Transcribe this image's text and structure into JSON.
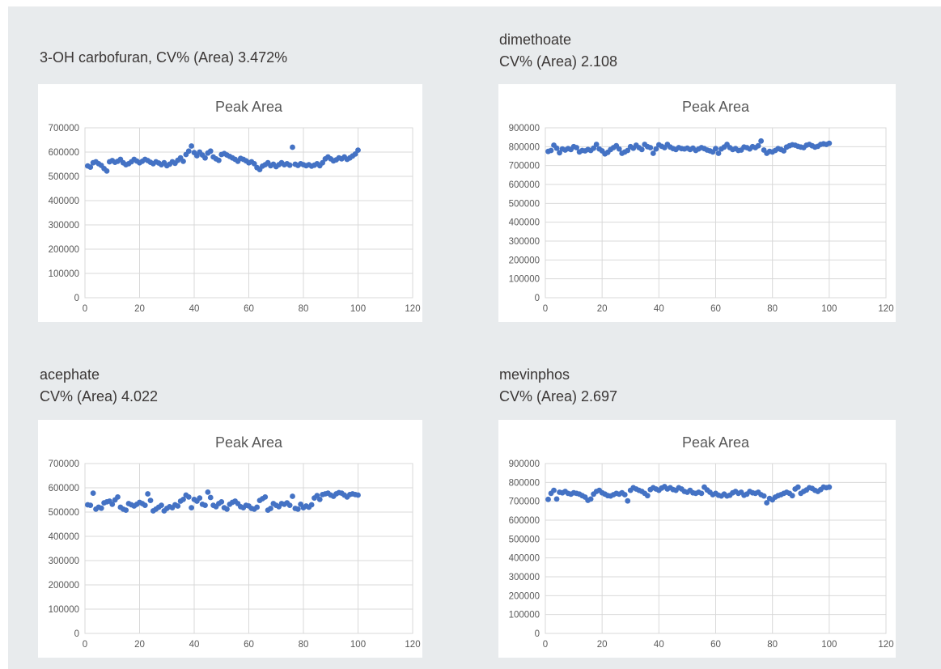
{
  "colors": {
    "panel_bg": "#e8ebed",
    "card_bg": "#ffffff",
    "heading_text": "#3b3736",
    "chart_text": "#595959",
    "gridline": "#d9d9d9",
    "marker": "#4472C4"
  },
  "panels": [
    {
      "heading_lines": [
        "3-OH carbofuran, CV% (Area) 3.472%"
      ]
    },
    {
      "heading_lines": [
        "dimethoate",
        "CV% (Area) 2.108"
      ]
    },
    {
      "heading_lines": [
        "acephate",
        "CV% (Area) 4.022"
      ]
    },
    {
      "heading_lines": [
        "mevinphos",
        "CV% (Area) 2.697"
      ]
    }
  ],
  "chart_data": [
    {
      "type": "scatter",
      "title": "Peak Area",
      "xlabel": "",
      "ylabel": "",
      "xlim": [
        0,
        120
      ],
      "ylim": [
        0,
        700000
      ],
      "xtick_step": 20,
      "ytick_step": 100000,
      "grid": true,
      "legend": "none",
      "x_start": 1,
      "x_step": 1,
      "marker_color": "#4472C4",
      "values": [
        543000,
        538000,
        556000,
        560000,
        552000,
        545000,
        532000,
        522000,
        560000,
        565000,
        558000,
        562000,
        570000,
        556000,
        548000,
        552000,
        560000,
        570000,
        563000,
        556000,
        562000,
        570000,
        565000,
        558000,
        552000,
        560000,
        555000,
        548000,
        556000,
        544000,
        550000,
        560000,
        554000,
        566000,
        576000,
        562000,
        590000,
        604000,
        625000,
        598000,
        585000,
        600000,
        588000,
        576000,
        596000,
        604000,
        580000,
        572000,
        566000,
        590000,
        594000,
        588000,
        582000,
        576000,
        570000,
        562000,
        574000,
        570000,
        564000,
        556000,
        560000,
        552000,
        536000,
        528000,
        542000,
        548000,
        556000,
        544000,
        550000,
        540000,
        548000,
        556000,
        548000,
        552000,
        546000,
        620000,
        550000,
        545000,
        552000,
        548000,
        544000,
        548000,
        542000,
        546000,
        552000,
        544000,
        556000,
        572000,
        580000,
        572000,
        564000,
        568000,
        576000,
        572000,
        580000,
        570000,
        576000,
        584000,
        592000,
        608000
      ]
    },
    {
      "type": "scatter",
      "title": "Peak Area",
      "xlabel": "",
      "ylabel": "",
      "xlim": [
        0,
        120
      ],
      "ylim": [
        0,
        900000
      ],
      "xtick_step": 20,
      "ytick_step": 100000,
      "grid": true,
      "legend": "none",
      "x_start": 1,
      "x_step": 1,
      "marker_color": "#4472C4",
      "values": [
        775000,
        780000,
        808000,
        792000,
        768000,
        788000,
        782000,
        790000,
        785000,
        800000,
        795000,
        772000,
        780000,
        778000,
        785000,
        780000,
        792000,
        812000,
        788000,
        778000,
        762000,
        770000,
        785000,
        795000,
        805000,
        788000,
        765000,
        772000,
        780000,
        800000,
        792000,
        808000,
        795000,
        785000,
        812000,
        800000,
        795000,
        765000,
        788000,
        810000,
        802000,
        795000,
        812000,
        798000,
        790000,
        785000,
        795000,
        790000,
        788000,
        792000,
        785000,
        792000,
        780000,
        788000,
        795000,
        790000,
        782000,
        778000,
        772000,
        790000,
        765000,
        788000,
        798000,
        812000,
        795000,
        785000,
        790000,
        780000,
        782000,
        798000,
        795000,
        788000,
        800000,
        795000,
        805000,
        830000,
        782000,
        765000,
        775000,
        772000,
        780000,
        790000,
        785000,
        778000,
        798000,
        805000,
        810000,
        808000,
        802000,
        798000,
        795000,
        808000,
        812000,
        805000,
        798000,
        802000,
        812000,
        815000,
        812000,
        818000
      ]
    },
    {
      "type": "scatter",
      "title": "Peak Area",
      "xlabel": "",
      "ylabel": "",
      "xlim": [
        0,
        120
      ],
      "ylim": [
        0,
        700000
      ],
      "xtick_step": 20,
      "ytick_step": 100000,
      "grid": true,
      "legend": "none",
      "x_start": 1,
      "x_step": 1,
      "marker_color": "#4472C4",
      "values": [
        530000,
        528000,
        578000,
        512000,
        520000,
        516000,
        538000,
        542000,
        545000,
        532000,
        550000,
        562000,
        520000,
        512000,
        508000,
        535000,
        530000,
        525000,
        532000,
        540000,
        535000,
        528000,
        575000,
        548000,
        505000,
        512000,
        520000,
        528000,
        505000,
        515000,
        522000,
        518000,
        530000,
        525000,
        545000,
        552000,
        570000,
        562000,
        518000,
        552000,
        545000,
        558000,
        532000,
        528000,
        582000,
        560000,
        528000,
        522000,
        535000,
        542000,
        518000,
        512000,
        532000,
        540000,
        545000,
        535000,
        522000,
        518000,
        528000,
        525000,
        515000,
        512000,
        520000,
        548000,
        555000,
        562000,
        508000,
        515000,
        535000,
        528000,
        522000,
        535000,
        532000,
        538000,
        528000,
        565000,
        515000,
        512000,
        532000,
        518000,
        525000,
        520000,
        530000,
        558000,
        568000,
        552000,
        572000,
        575000,
        578000,
        570000,
        565000,
        575000,
        580000,
        578000,
        570000,
        562000,
        572000,
        575000,
        572000,
        570000
      ]
    },
    {
      "type": "scatter",
      "title": "Peak Area",
      "xlabel": "",
      "ylabel": "",
      "xlim": [
        0,
        120
      ],
      "ylim": [
        0,
        900000
      ],
      "xtick_step": 20,
      "ytick_step": 100000,
      "grid": true,
      "legend": "none",
      "x_start": 1,
      "x_step": 1,
      "marker_color": "#4472C4",
      "values": [
        710000,
        742000,
        758000,
        712000,
        748000,
        745000,
        752000,
        742000,
        738000,
        745000,
        742000,
        738000,
        730000,
        722000,
        705000,
        712000,
        738000,
        752000,
        758000,
        745000,
        738000,
        730000,
        728000,
        735000,
        742000,
        738000,
        745000,
        735000,
        702000,
        758000,
        772000,
        765000,
        758000,
        752000,
        742000,
        730000,
        762000,
        772000,
        765000,
        758000,
        770000,
        778000,
        765000,
        772000,
        762000,
        758000,
        772000,
        765000,
        752000,
        748000,
        758000,
        745000,
        742000,
        748000,
        742000,
        775000,
        760000,
        748000,
        735000,
        742000,
        732000,
        728000,
        738000,
        728000,
        732000,
        745000,
        752000,
        742000,
        748000,
        732000,
        738000,
        752000,
        745000,
        742000,
        748000,
        735000,
        728000,
        692000,
        715000,
        708000,
        722000,
        730000,
        735000,
        742000,
        748000,
        742000,
        730000,
        765000,
        775000,
        742000,
        752000,
        760000,
        772000,
        768000,
        758000,
        752000,
        762000,
        775000,
        772000,
        775000
      ]
    }
  ]
}
